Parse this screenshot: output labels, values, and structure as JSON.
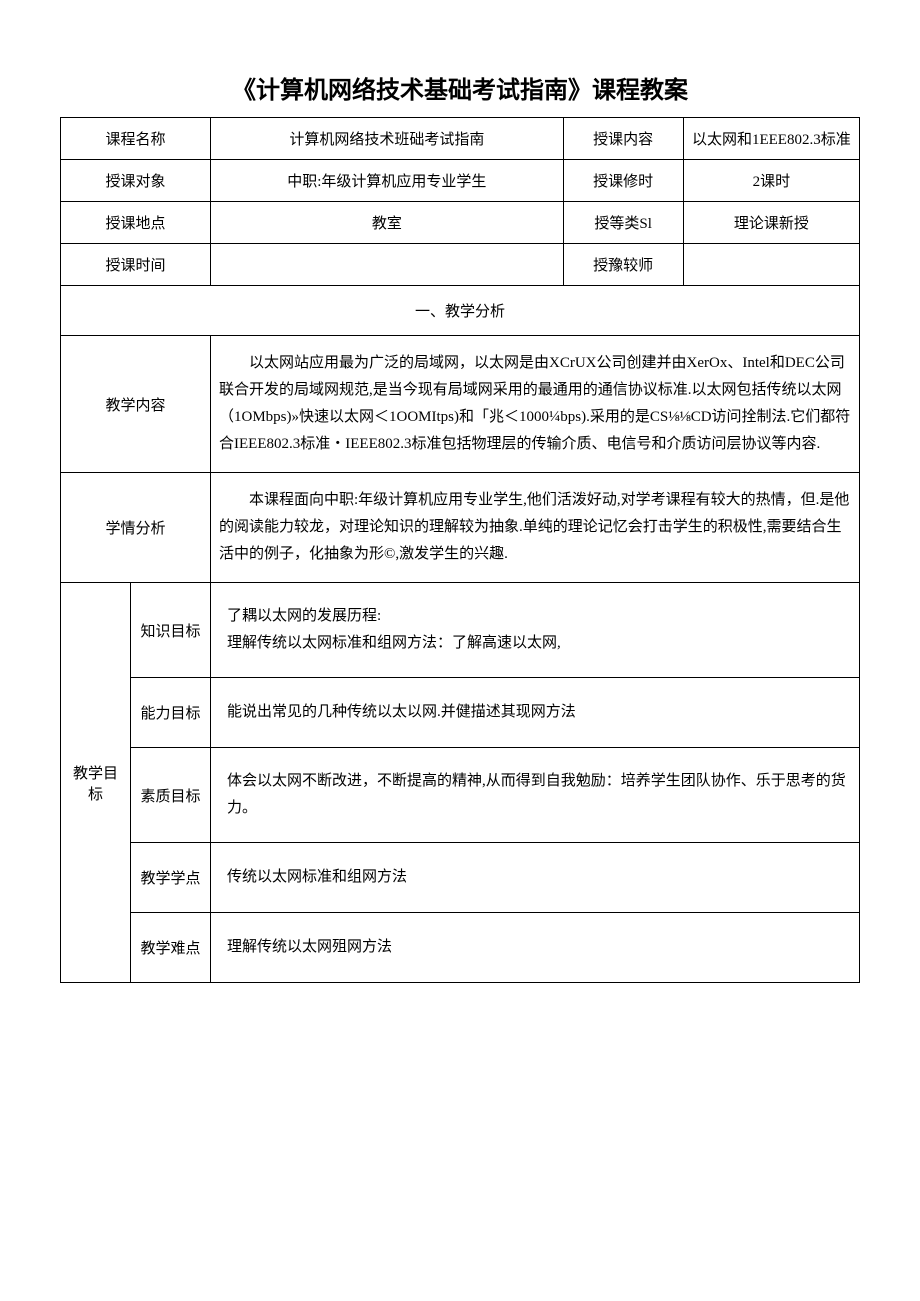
{
  "title": "《计算机网络技术基础考试指南》课程教案",
  "meta": {
    "courseNameLabel": "课程名称",
    "courseName": "计算机网络技术班础考试指南",
    "lectureContentLabel": "授课内容",
    "lectureContent": "以太网和1EEE802.3标准",
    "audienceLabel": "授课对象",
    "audience": "中职:年级计算机应用专业学生",
    "hoursLabel": "授课修时",
    "hours": "2课时",
    "placeLabel": "授课地点",
    "place": "教室",
    "typeLabel": "授等类Sl",
    "type": "理论课新授",
    "timeLabel": "授课时间",
    "time": "",
    "teacherLabel": "授豫较师",
    "teacher": ""
  },
  "section1Title": "一、教学分析",
  "teachingContentLabel": "教学内容",
  "teachingContent": "以太网站应用最为广泛的局域网，以太网是由XCrUX公司创建并由XerOx、Intel和DEC公司联合开发的局域网规范,是当今现有局域网采用的最通用的通信协议标准.以太网包括传统以太网（1OMbps)»快速以太网＜1OOMItps)和「兆＜1000¼bps).采用的是CS⅛⅛CD访问拴制法.它们都符合IEEE802.3标准・IEEE802.3标准包括物理层的传输介质、电信号和介质访问层协议等内容.",
  "learnerAnalysisLabel": "学情分析",
  "learnerAnalysis": "本课程面向中职:年级计算机应用专业学生,他们活泼好动,对学考课程有较大的热情，但.是他的阅读能力较龙，对理论知识的理解较为抽象.单纯的理论记忆会打击学生的积极性,需要结合生活中的例子，化抽象为形©,激发学生的兴趣.",
  "goals": {
    "groupLabel": "教学目标",
    "knowledgeLabel": "知识目标",
    "knowledge": "了耦以太网的发展历程:\n理解传统以太网标准和组网方法：了解高速以太网,",
    "abilityLabel": "能力目标",
    "ability": "能说出常见的几种传统以太以网.并健描述其现网方法",
    "qualityLabel": "素质目标",
    "quality": "体会以太网不断改进，不断提高的精神,从而得到自我勉励：培养学生团队协作、乐于思考的货力。",
    "keyPointLabel": "教学学点",
    "keyPoint": "传统以太网标准和组网方法",
    "difficultyLabel": "教学难点",
    "difficulty": "理解传统以太网殂网方法"
  },
  "style": {
    "pageWidth": 920,
    "pageHeight": 1301,
    "background": "#ffffff",
    "borderColor": "#000000",
    "titleFontSize": 24,
    "bodyFontSize": 15
  }
}
